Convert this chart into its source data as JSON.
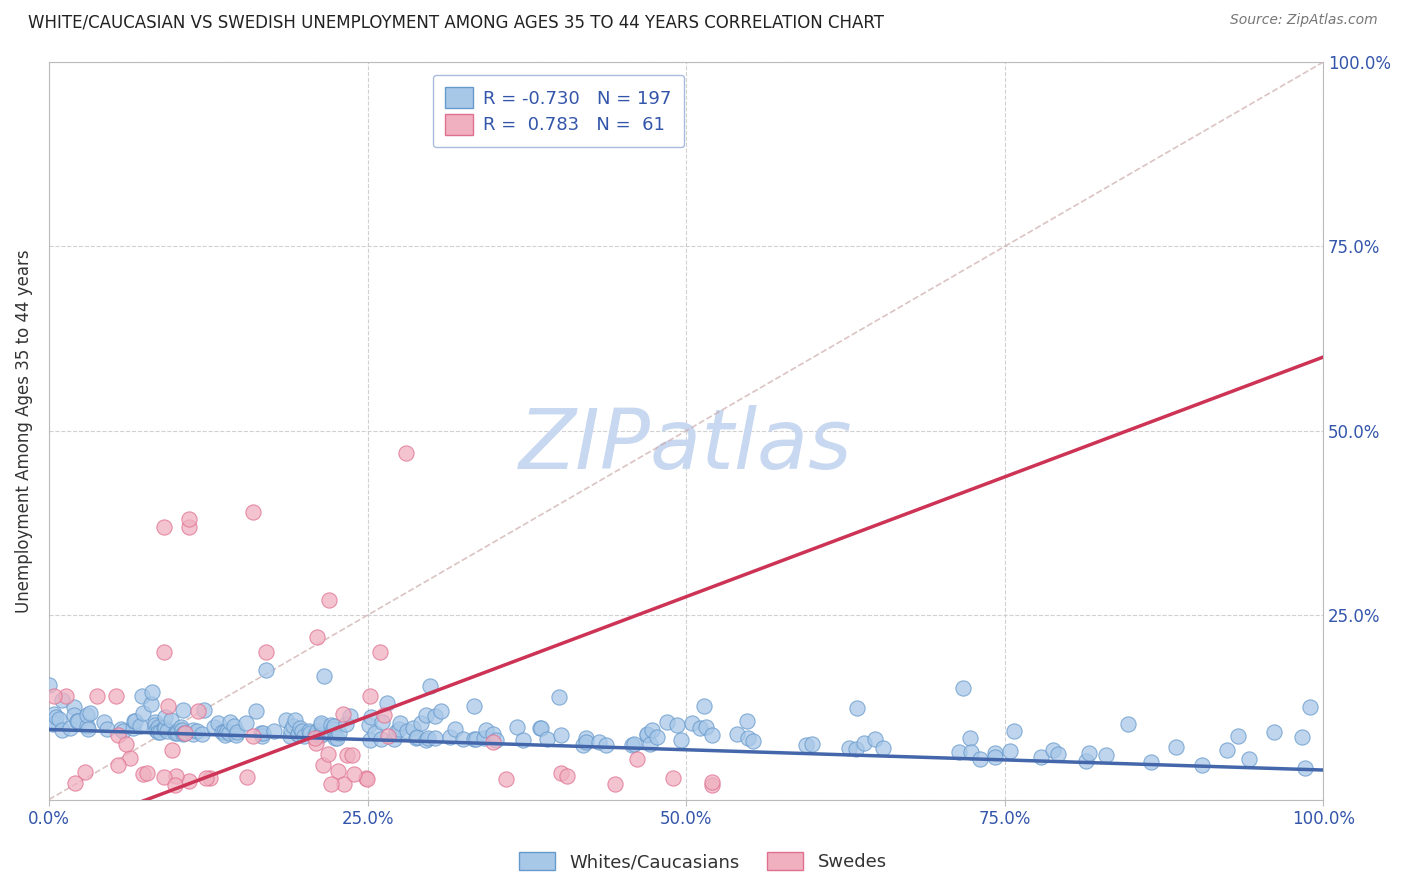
{
  "title": "WHITE/CAUCASIAN VS SWEDISH UNEMPLOYMENT AMONG AGES 35 TO 44 YEARS CORRELATION CHART",
  "source": "Source: ZipAtlas.com",
  "ylabel": "Unemployment Among Ages 35 to 44 years",
  "watermark": "ZIPatlas",
  "legend_labels": [
    "Whites/Caucasians",
    "Swedes"
  ],
  "R_blue": -0.73,
  "N_blue": 197,
  "R_pink": 0.783,
  "N_pink": 61,
  "blue_color": "#a8c8e8",
  "blue_edge_color": "#6699cc",
  "pink_color": "#f0b0c0",
  "pink_edge_color": "#e07090",
  "blue_line_color": "#4466aa",
  "pink_line_color": "#cc3355",
  "diag_color": "#ccaaaa",
  "xlim": [
    0.0,
    1.0
  ],
  "ylim": [
    0.0,
    1.0
  ],
  "xticks": [
    0.0,
    0.25,
    0.5,
    0.75,
    1.0
  ],
  "yticks": [
    0.0,
    0.25,
    0.5,
    0.75,
    1.0
  ],
  "xticklabels": [
    "0.0%",
    "25.0%",
    "50.0%",
    "75.0%",
    "100.0%"
  ],
  "yticklabels": [
    "",
    "25.0%",
    "50.0%",
    "75.0%",
    "100.0%"
  ],
  "grid_color": "#cccccc",
  "background_color": "#ffffff",
  "title_fontsize": 12,
  "axis_label_fontsize": 12,
  "tick_fontsize": 12,
  "legend_fontsize": 13,
  "watermark_fontsize": 60,
  "watermark_color": "#c8d8f0",
  "blue_line_intercept": 0.095,
  "blue_line_slope": -0.055,
  "pink_line_intercept": -0.05,
  "pink_line_slope": 0.65
}
